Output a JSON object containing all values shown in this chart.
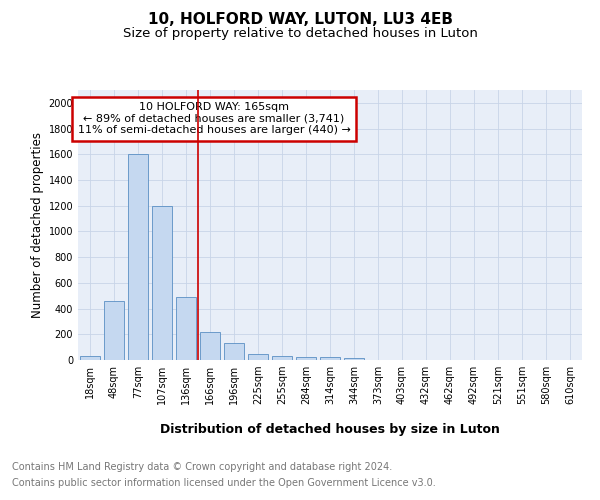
{
  "title": "10, HOLFORD WAY, LUTON, LU3 4EB",
  "subtitle": "Size of property relative to detached houses in Luton",
  "xlabel": "Distribution of detached houses by size in Luton",
  "ylabel": "Number of detached properties",
  "categories": [
    "18sqm",
    "48sqm",
    "77sqm",
    "107sqm",
    "136sqm",
    "166sqm",
    "196sqm",
    "225sqm",
    "255sqm",
    "284sqm",
    "314sqm",
    "344sqm",
    "373sqm",
    "403sqm",
    "432sqm",
    "462sqm",
    "492sqm",
    "521sqm",
    "551sqm",
    "580sqm",
    "610sqm"
  ],
  "values": [
    35,
    460,
    1600,
    1200,
    490,
    215,
    130,
    50,
    35,
    20,
    20,
    15,
    0,
    0,
    0,
    0,
    0,
    0,
    0,
    0,
    0
  ],
  "bar_color": "#c5d8f0",
  "bar_edge_color": "#5a8fc4",
  "red_line_index": 4.5,
  "red_line_label": "10 HOLFORD WAY: 165sqm",
  "annotation_line1": "← 89% of detached houses are smaller (3,741)",
  "annotation_line2": "11% of semi-detached houses are larger (440) →",
  "annotation_box_color": "#ffffff",
  "annotation_border_color": "#cc0000",
  "ylim": [
    0,
    2100
  ],
  "yticks": [
    0,
    200,
    400,
    600,
    800,
    1000,
    1200,
    1400,
    1600,
    1800,
    2000
  ],
  "grid_color": "#c8d4e8",
  "bg_color": "#e8eef8",
  "footer_line1": "Contains HM Land Registry data © Crown copyright and database right 2024.",
  "footer_line2": "Contains public sector information licensed under the Open Government Licence v3.0.",
  "title_fontsize": 11,
  "subtitle_fontsize": 9.5,
  "xlabel_fontsize": 9,
  "ylabel_fontsize": 8.5,
  "tick_fontsize": 7,
  "annot_fontsize": 8,
  "footer_fontsize": 7
}
